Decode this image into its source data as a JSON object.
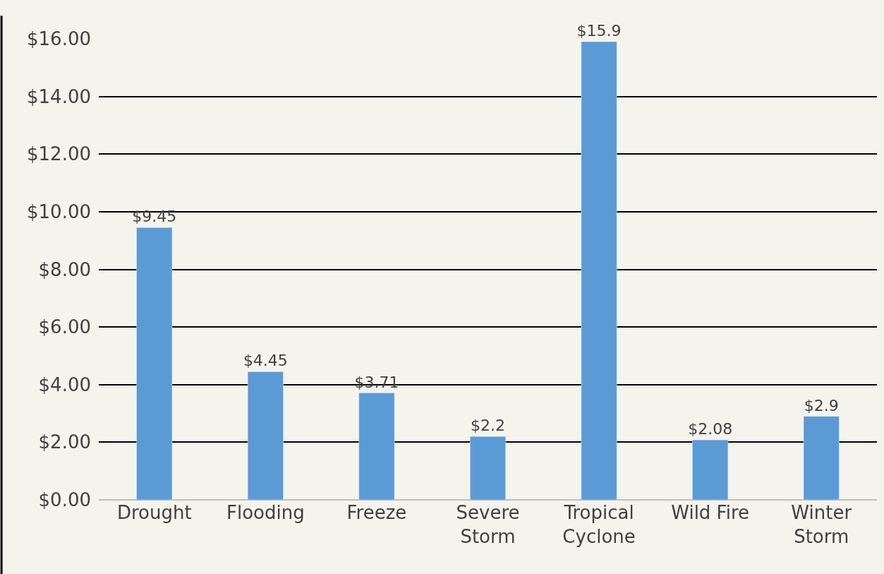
{
  "chart_data": {
    "type": "bar",
    "categories": [
      "Drought",
      "Flooding",
      "Freeze",
      "Severe\nStorm",
      "Tropical\nCyclone",
      "Wild Fire",
      "Winter\nStorm"
    ],
    "values": [
      9.45,
      4.45,
      3.71,
      2.2,
      15.9,
      2.08,
      2.9
    ],
    "value_labels": [
      "$9.45",
      "$4.45",
      "$3.71",
      "$2.2",
      "$15.9",
      "$2.08",
      "$2.9"
    ],
    "color": "#5b9bd5",
    "ylim": [
      0,
      16
    ],
    "yticks": [
      {
        "value": 0,
        "label": "$0.00"
      },
      {
        "value": 2,
        "label": "$2.00"
      },
      {
        "value": 4,
        "label": "$4.00"
      },
      {
        "value": 6,
        "label": "$6.00"
      },
      {
        "value": 8,
        "label": "$8.00"
      },
      {
        "value": 10,
        "label": "$10.00"
      },
      {
        "value": 12,
        "label": "$12.00"
      },
      {
        "value": 14,
        "label": "$14.00"
      },
      {
        "value": 16,
        "label": "$16.00"
      }
    ],
    "grid": "y",
    "legend": false
  }
}
